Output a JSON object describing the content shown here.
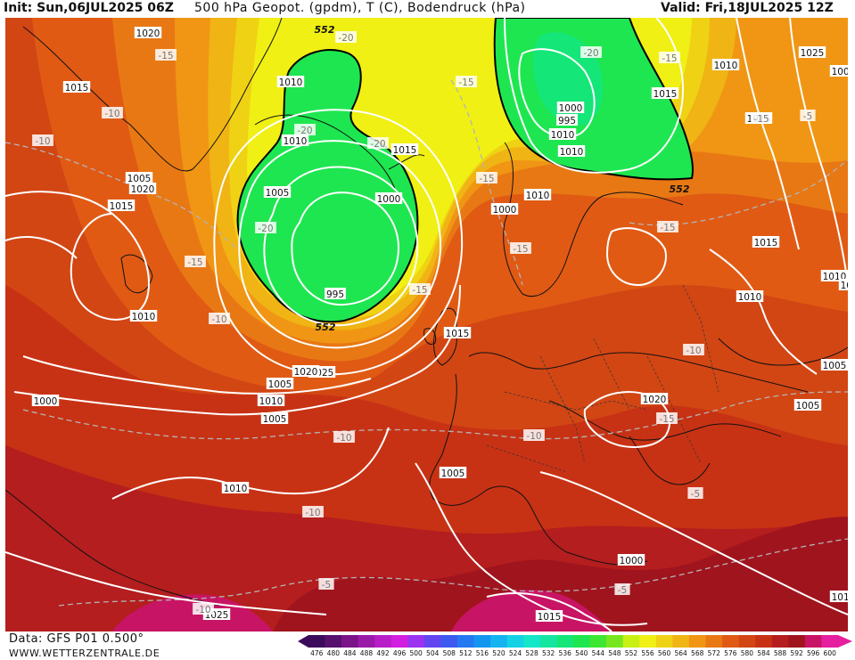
{
  "header": {
    "init": "Init: Sun,06JUL2025 06Z",
    "title": "500 hPa Geopot. (gpdm), T (C), Bodendruck (hPa)",
    "valid": "Valid: Fri,18JUL2025 12Z"
  },
  "footer": {
    "data_source": "Data: GFS P01 0.500°",
    "website": "WWW.WETTERZENTRALE.DE"
  },
  "color_scale": {
    "values": [
      "476",
      "480",
      "484",
      "488",
      "492",
      "496",
      "500",
      "504",
      "508",
      "512",
      "516",
      "520",
      "524",
      "528",
      "532",
      "536",
      "540",
      "544",
      "548",
      "552",
      "556",
      "560",
      "564",
      "568",
      "572",
      "576",
      "580",
      "584",
      "588",
      "592",
      "596",
      "600"
    ],
    "colors": [
      "#3c0a5a",
      "#56106e",
      "#7a1488",
      "#9a1aa8",
      "#b81ec8",
      "#d21ee0",
      "#9a32f0",
      "#6446f0",
      "#3c5af0",
      "#2478f0",
      "#1496f0",
      "#14b4f0",
      "#14d2e6",
      "#14e6c8",
      "#14e6a0",
      "#14e678",
      "#1ee650",
      "#3ce632",
      "#78e61e",
      "#c8f014",
      "#f0f014",
      "#f0d214",
      "#f0b414",
      "#f09614",
      "#e87814",
      "#e05a14",
      "#d24614",
      "#c83214",
      "#b41e1e",
      "#a0141e",
      "#c81464",
      "#e61ea0"
    ]
  },
  "map": {
    "pressure_labels": [
      "1020",
      "1015",
      "1010",
      "1010",
      "1010",
      "1005",
      "1000",
      "995",
      "1015",
      "1020",
      "1015",
      "1010",
      "1010",
      "995",
      "1000",
      "1010",
      "1015",
      "1010",
      "1005",
      "1000",
      "1005",
      "1010",
      "1005",
      "1025",
      "1020",
      "1015",
      "1010",
      "1005",
      "1000",
      "1020",
      "1015",
      "1025",
      "1015",
      "1015",
      "1010",
      "1025",
      "1010",
      "1005",
      "1005",
      "1015",
      "1010",
      "1000",
      "1000"
    ],
    "temperature_labels": [
      "-15",
      "-10",
      "-10",
      "-15",
      "-20",
      "-20",
      "-20",
      "-15",
      "-20",
      "-15",
      "-15",
      "-20",
      "-15",
      "-15",
      "-15",
      "-15",
      "-15",
      "-10",
      "-10",
      "-10",
      "-10",
      "-10",
      "-10",
      "-5",
      "-5",
      "-5",
      "-5"
    ],
    "geopotential_labels": [
      "552",
      "552",
      "552"
    ]
  }
}
